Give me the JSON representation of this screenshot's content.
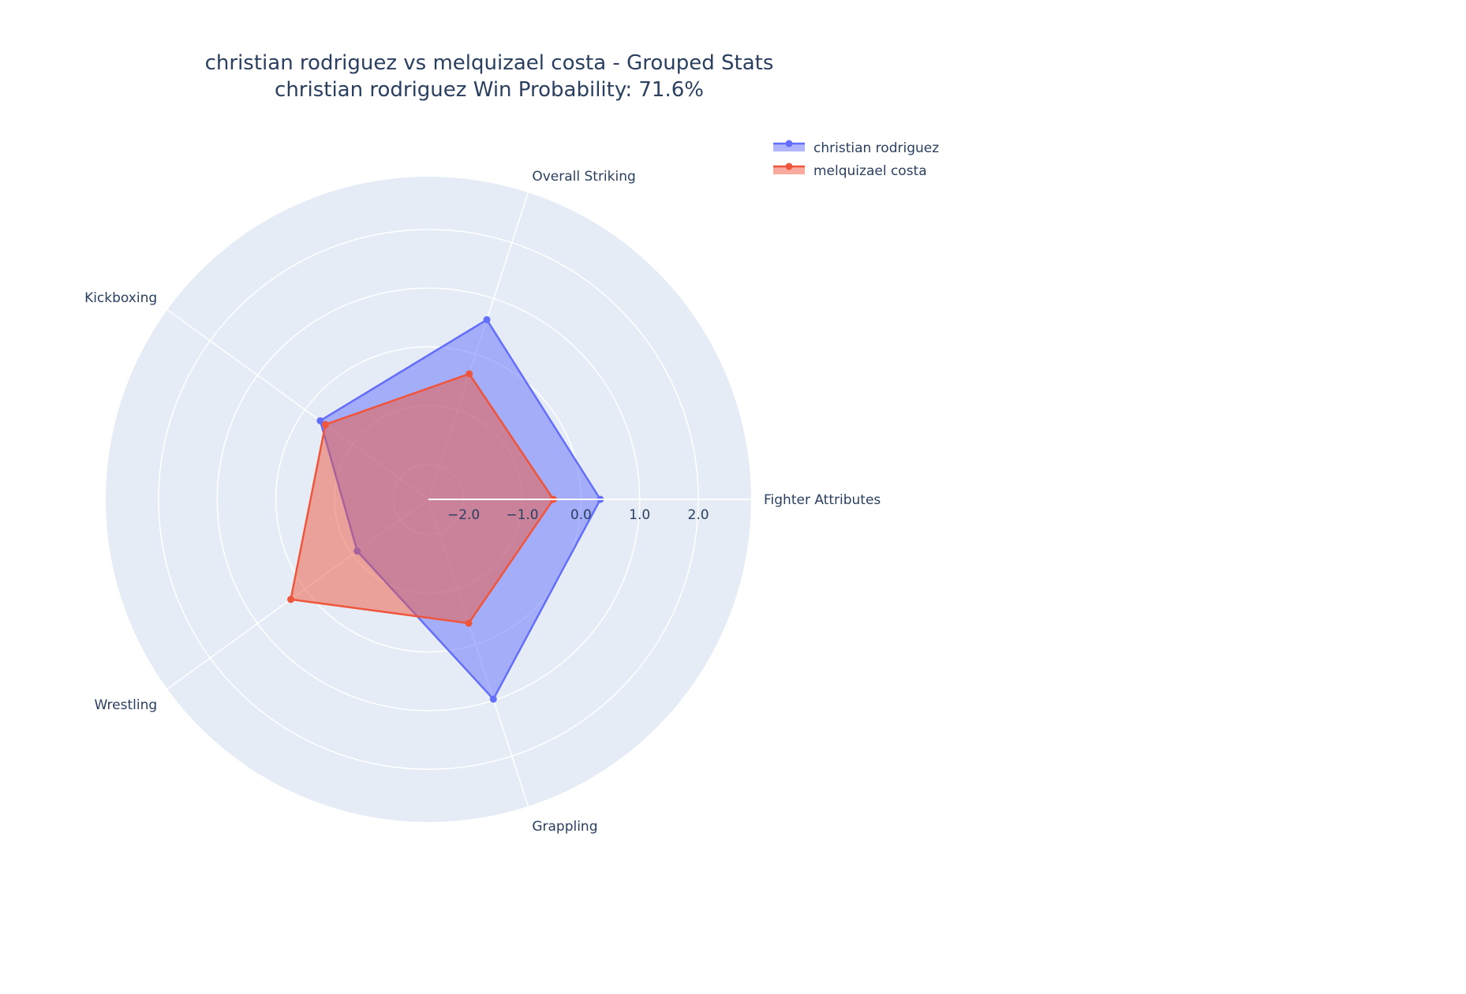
{
  "chart_data": {
    "type": "radar",
    "title": "christian rodriguez vs melquizael costa - Grouped Stats",
    "subtitle": "christian rodriguez Win Probability: 71.6%",
    "categories": [
      "Fighter Attributes",
      "Overall Striking",
      "Kickboxing",
      "Wrestling",
      "Grappling"
    ],
    "radial_range": [
      -2.6,
      2.9
    ],
    "radial_ticks": [
      -2,
      -1,
      0,
      1,
      2
    ],
    "radial_tick_labels": [
      "−2.0",
      "−1.0",
      "0.0",
      "1.0",
      "2.0"
    ],
    "angular_start_degrees": 0,
    "legend_position": "top-right",
    "series": [
      {
        "name": "christian rodriguez",
        "values": [
          0.33,
          0.62,
          -0.32,
          -1.1,
          0.98
        ],
        "color": "#636efa",
        "fill": "rgba(99,110,250,0.5)"
      },
      {
        "name": "melquizael costa",
        "values": [
          -0.47,
          -0.35,
          -0.43,
          0.3,
          -0.38
        ],
        "color": "#ef553b",
        "fill": "rgba(239,85,59,0.5)"
      }
    ]
  }
}
